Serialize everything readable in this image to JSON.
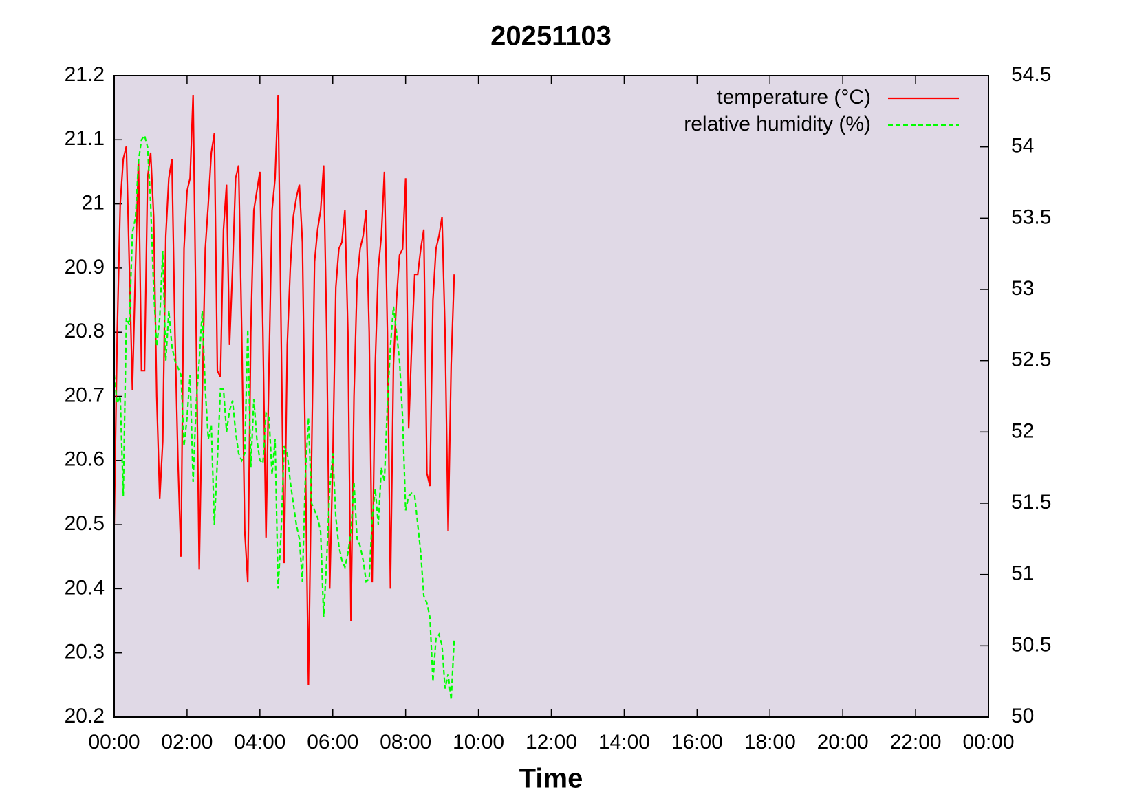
{
  "chart_data": {
    "type": "line",
    "title": "20251103",
    "x_label": "Time",
    "x": [
      0,
      5,
      10,
      15,
      20,
      25,
      30,
      35,
      40,
      45,
      50,
      55,
      60,
      65,
      70,
      75,
      80,
      85,
      90,
      95,
      100,
      105,
      110,
      115,
      120,
      125,
      130,
      135,
      140,
      145,
      150,
      155,
      160,
      165,
      170,
      175,
      180,
      185,
      190,
      195,
      200,
      205,
      210,
      215,
      220,
      225,
      230,
      235,
      240,
      245,
      250,
      255,
      260,
      265,
      270,
      275,
      280,
      285,
      290,
      295,
      300,
      305,
      310,
      315,
      320,
      325,
      330,
      335,
      340,
      345,
      350,
      355,
      360,
      365,
      370,
      375,
      380,
      385,
      390,
      395,
      400,
      405,
      410,
      415,
      420,
      425,
      430,
      435,
      440,
      445,
      450,
      455,
      460,
      465,
      470,
      475,
      480,
      485,
      490,
      495,
      500,
      505,
      510,
      515,
      520,
      525,
      530,
      535,
      540,
      545,
      550,
      555,
      560
    ],
    "xlim": [
      0,
      1440
    ],
    "xticks": [
      {
        "value": 0,
        "label": "00:00"
      },
      {
        "value": 120,
        "label": "02:00"
      },
      {
        "value": 240,
        "label": "04:00"
      },
      {
        "value": 360,
        "label": "06:00"
      },
      {
        "value": 480,
        "label": "08:00"
      },
      {
        "value": 600,
        "label": "10:00"
      },
      {
        "value": 720,
        "label": "12:00"
      },
      {
        "value": 840,
        "label": "14:00"
      },
      {
        "value": 960,
        "label": "16:00"
      },
      {
        "value": 1080,
        "label": "18:00"
      },
      {
        "value": 1200,
        "label": "20:00"
      },
      {
        "value": 1320,
        "label": "22:00"
      },
      {
        "value": 1440,
        "label": "00:00"
      }
    ],
    "ylim": [
      20.2,
      21.2
    ],
    "yticks": [
      20.2,
      20.3,
      20.4,
      20.5,
      20.6,
      20.7,
      20.8,
      20.9,
      21,
      21.1,
      21.2
    ],
    "y2lim": [
      50,
      54.5
    ],
    "y2ticks": [
      50,
      50.5,
      51,
      51.5,
      52,
      52.5,
      53,
      53.5,
      54,
      54.5
    ],
    "legend": "upper right",
    "background": "#e0d9e6",
    "series": [
      {
        "name": "temperature (°C)",
        "color": "#ff0000",
        "line_style": "solid",
        "axis": "y",
        "values": [
          20.5,
          20.8,
          21.0,
          21.07,
          21.09,
          20.9,
          20.71,
          20.9,
          21.07,
          20.74,
          20.74,
          21.04,
          21.08,
          20.98,
          20.7,
          20.54,
          20.63,
          20.95,
          21.04,
          21.07,
          20.8,
          20.6,
          20.45,
          20.93,
          21.02,
          21.04,
          21.17,
          20.8,
          20.43,
          20.7,
          20.93,
          21.0,
          21.08,
          21.11,
          20.74,
          20.73,
          20.96,
          21.03,
          20.78,
          20.9,
          21.04,
          21.06,
          20.8,
          20.49,
          20.41,
          20.8,
          20.99,
          21.02,
          21.05,
          20.8,
          20.48,
          20.75,
          20.99,
          21.04,
          21.17,
          20.8,
          20.44,
          20.78,
          20.9,
          20.98,
          21.01,
          21.03,
          20.94,
          20.6,
          20.25,
          20.6,
          20.91,
          20.96,
          20.99,
          21.06,
          20.8,
          20.4,
          20.6,
          20.87,
          20.93,
          20.94,
          20.99,
          20.8,
          20.35,
          20.7,
          20.88,
          20.93,
          20.95,
          20.99,
          20.8,
          20.41,
          20.75,
          20.9,
          20.95,
          21.05,
          20.8,
          20.4,
          20.75,
          20.85,
          20.92,
          20.93,
          21.04,
          20.65,
          20.78,
          20.89,
          20.89,
          20.93,
          20.96,
          20.58,
          20.56,
          20.85,
          20.93,
          20.95,
          20.98,
          20.8,
          20.49,
          20.75,
          20.89
        ]
      },
      {
        "name": "relative humidity (%)",
        "color": "#00ff00",
        "line_style": "dashed",
        "axis": "y2",
        "values": [
          52.4,
          52.2,
          52.25,
          51.55,
          52.8,
          52.75,
          53.4,
          53.5,
          53.9,
          54.05,
          54.08,
          54.0,
          53.6,
          53.0,
          52.6,
          52.8,
          53.27,
          52.5,
          52.85,
          52.6,
          52.5,
          52.45,
          52.4,
          51.9,
          52.1,
          52.4,
          51.65,
          52.2,
          52.5,
          52.85,
          52.3,
          51.95,
          52.05,
          51.35,
          51.8,
          52.3,
          52.3,
          52.0,
          52.15,
          52.22,
          52.0,
          51.85,
          51.8,
          51.85,
          52.72,
          51.75,
          52.23,
          51.95,
          51.8,
          51.78,
          52.13,
          52.1,
          51.7,
          51.95,
          50.9,
          51.3,
          51.9,
          51.85,
          51.65,
          51.5,
          51.35,
          51.25,
          50.95,
          51.7,
          52.1,
          51.5,
          51.45,
          51.4,
          51.3,
          50.7,
          51.1,
          51.6,
          51.85,
          51.4,
          51.2,
          51.1,
          51.05,
          51.15,
          51.3,
          51.65,
          51.25,
          51.2,
          51.1,
          50.95,
          50.97,
          51.4,
          51.6,
          51.35,
          51.75,
          51.65,
          52.2,
          52.6,
          52.88,
          52.7,
          52.5,
          52.1,
          51.45,
          51.55,
          51.57,
          51.55,
          51.35,
          51.15,
          50.85,
          50.8,
          50.7,
          50.25,
          50.55,
          50.58,
          50.5,
          50.2,
          50.3,
          50.12,
          50.55
        ]
      }
    ]
  }
}
